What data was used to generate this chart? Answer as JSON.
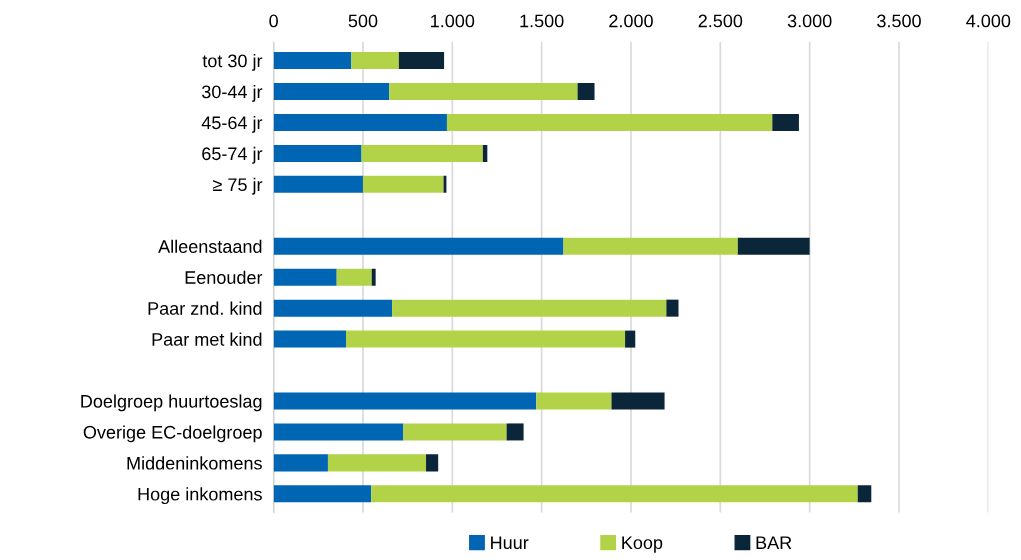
{
  "chart_data": {
    "type": "bar",
    "orientation": "horizontal",
    "stacked": true,
    "categories": [
      "tot 30 jr",
      "30-44 jr",
      "45-64 jr",
      "65-74 jr",
      "≥ 75 jr",
      null,
      "Alleenstaand",
      "Eenouder",
      "Paar znd. kind",
      "Paar met kind",
      null,
      "Doelgroep huurtoeslag",
      "Overige EC-doelgroep",
      "Middeninkomens",
      "Hoge inkomens"
    ],
    "series": [
      {
        "name": "Huur",
        "color": "#0066b3",
        "values": [
          435,
          647,
          970,
          492,
          500,
          null,
          1622,
          353,
          663,
          405,
          null,
          1470,
          726,
          304,
          546
        ]
      },
      {
        "name": "Koop",
        "color": "#b2d347",
        "values": [
          266,
          1054,
          1821,
          679,
          451,
          null,
          976,
          196,
          1535,
          1562,
          null,
          421,
          578,
          549,
          2723
        ]
      },
      {
        "name": "BAR",
        "color": "#0b2539",
        "values": [
          253,
          95,
          149,
          25,
          16,
          null,
          402,
          22,
          68,
          57,
          null,
          297,
          95,
          68,
          76
        ]
      }
    ],
    "xlim": [
      0,
      4000
    ],
    "xticks": [
      0,
      {
        "value": 500,
        "label": "500"
      },
      {
        "value": 1000,
        "label": "1.000"
      },
      {
        "value": 1500,
        "label": "1.500"
      },
      {
        "value": 2000,
        "label": "2.000"
      },
      {
        "value": 2500,
        "label": "2.500"
      },
      {
        "value": 3000,
        "label": "3.000"
      },
      {
        "value": 3500,
        "label": "3.500"
      },
      {
        "value": 4000,
        "label": "4.000"
      }
    ],
    "grid": "x",
    "legend": "bottom"
  }
}
